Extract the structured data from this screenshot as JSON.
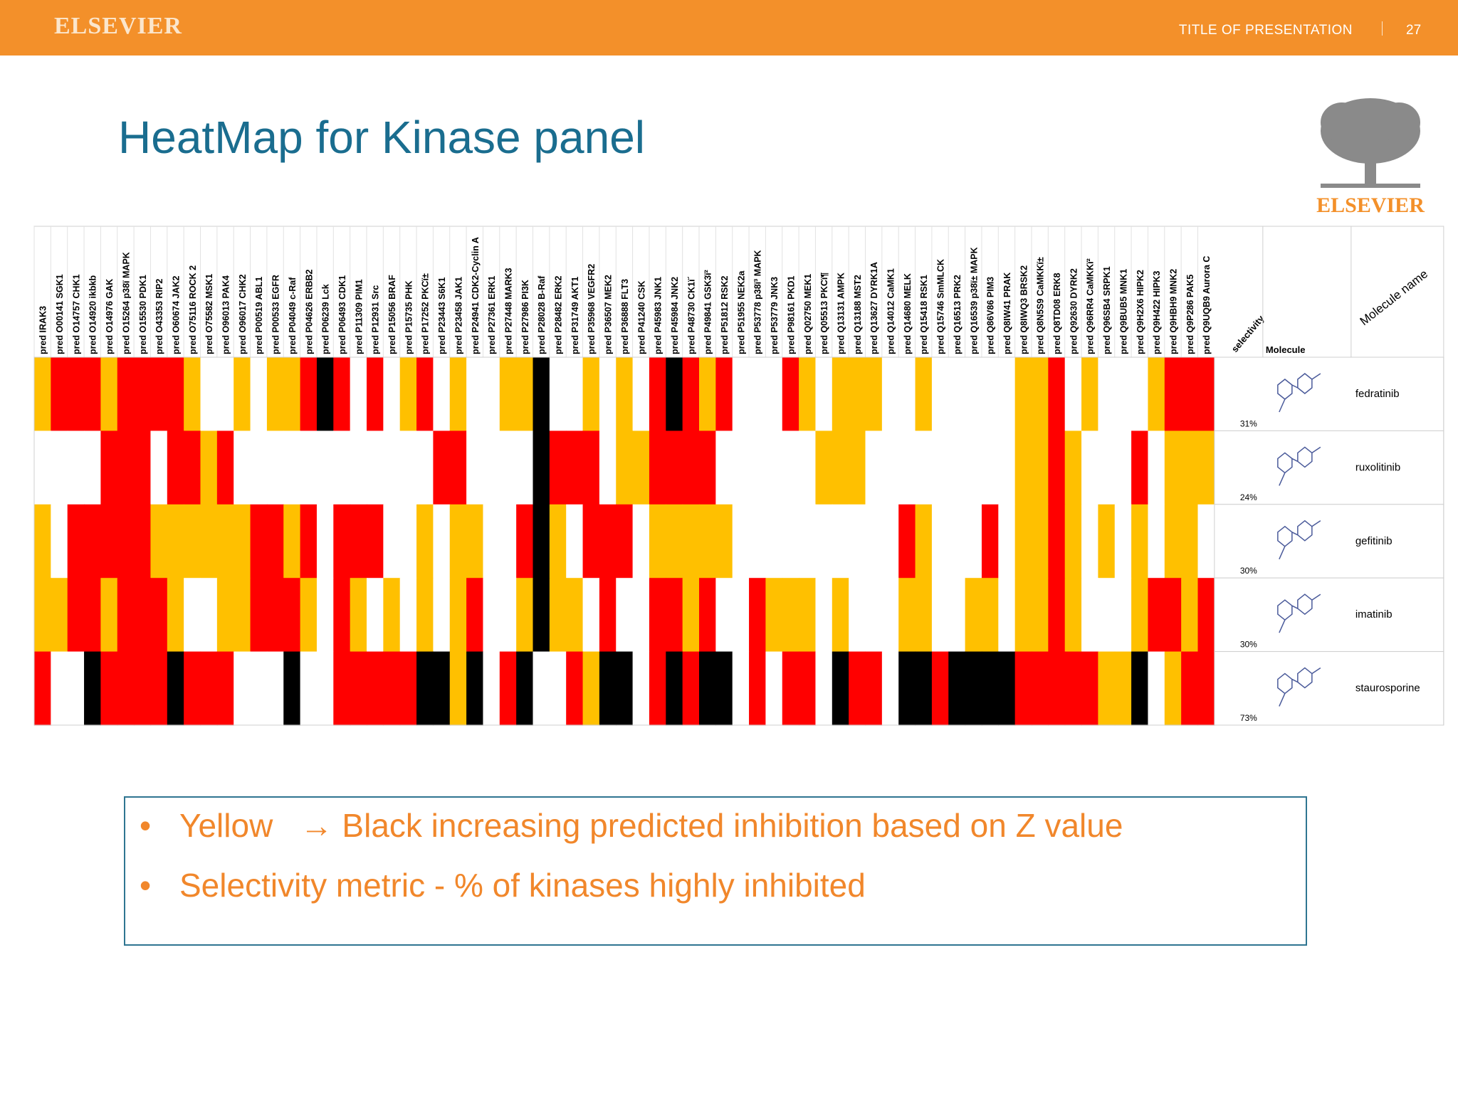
{
  "header": {
    "brand": "ELSEVIER",
    "deck_title": "TITLE OF PRESENTATION",
    "slide_number": "27"
  },
  "slide": {
    "title": "HeatMap for Kinase panel"
  },
  "logo": {
    "text": "ELSEVIER",
    "icon": "elsevier-tree-icon"
  },
  "colors": {
    "bar": "#f3902a",
    "title": "#1a6d8f",
    "bullet_text": "#f1872b",
    "box_border": "#2f7591",
    "level_0": "#ffffff",
    "level_1": "#ffc000",
    "level_2": "#ff0000",
    "level_3": "#000000"
  },
  "chart_data": {
    "type": "heatmap",
    "legend": "0 = white, 1 = yellow, 2 = red, 3 = black (increasing predicted inhibition)",
    "header_labels": {
      "selectivity": "selectivity",
      "molecule": "Molecule",
      "molecule_name": "Molecule name"
    },
    "columns": [
      "pred IRAK3",
      "pred O00141 SGK1",
      "pred O14757 CHK1",
      "pred O14920 ikbkb",
      "pred O14976 GAK",
      "pred O15264 p38ï MAPK",
      "pred O15530 PDK1",
      "pred O43353 RIP2",
      "pred O60674 JAK2",
      "pred O75116 ROCK 2",
      "pred O75582 MSK1",
      "pred O96013 PAK4",
      "pred O96017 CHK2",
      "pred P00519 ABL1",
      "pred P00533 EGFR",
      "pred P04049 c-Raf",
      "pred P04626 ERBB2",
      "pred P06239 Lck",
      "pred P06493 CDK1",
      "pred P11309 PIM1",
      "pred P12931 Src",
      "pred P15056 BRAF",
      "pred P15735 PHK",
      "pred P17252 PKCï±",
      "pred P23443 S6K1",
      "pred P23458 JAK1",
      "pred P24941 CDK2-Cyclin A",
      "pred P27361 ERK1",
      "pred P27448 MARK3",
      "pred P27986 PI3K",
      "pred P28028 B-Raf",
      "pred P28482 ERK2",
      "pred P31749 AKT1",
      "pred P35968 VEGFR2",
      "pred P36507 MEK2",
      "pred P36888 FLT3",
      "pred P41240 CSK",
      "pred P45983 JNK1",
      "pred P45984 JNK2",
      "pred P48730 CK1ï´",
      "pred P49841 GSK3ï²",
      "pred P51812 RSK2",
      "pred P51955 NEK2a",
      "pred P53778 p38ï³ MAPK",
      "pred P53779 JNK3",
      "pred P98161 PKD1",
      "pred Q02750 MEK1",
      "pred Q05513 PKCï¶",
      "pred Q13131 AMPK",
      "pred Q13188 MST2",
      "pred Q13627 DYRK1A",
      "pred Q14012 CaMK1",
      "pred Q14680 MELK",
      "pred Q15418 RSK1",
      "pred Q15746 SmMLCK",
      "pred Q16513 PRK2",
      "pred Q16539 p38ï± MAPK",
      "pred Q86V86 PIM3",
      "pred Q8IW41 PRAK",
      "pred Q8IWQ3 BRSK2",
      "pred Q8N5S9 CaMKKï±",
      "pred Q8TD08 ERK8",
      "pred Q92630 DYRK2",
      "pred Q96RR4 CaMKKï²",
      "pred Q96SB4 SRPK1",
      "pred Q9BUB5 MNK1",
      "pred Q9H2X6 HIPK2",
      "pred Q9H422 HIPK3",
      "pred Q9HBH9 MNK2",
      "pred Q9P286 PAK5",
      "pred Q9UQB9 Aurora C"
    ],
    "rows": [
      {
        "name": "fedratinib",
        "selectivity": "31%",
        "values": [
          1,
          2,
          2,
          2,
          1,
          2,
          2,
          2,
          2,
          1,
          0,
          0,
          1,
          0,
          1,
          1,
          2,
          3,
          2,
          0,
          2,
          0,
          1,
          2,
          0,
          1,
          0,
          0,
          1,
          1,
          3,
          0,
          0,
          1,
          0,
          1,
          0,
          2,
          3,
          2,
          1,
          2,
          0,
          0,
          0,
          2,
          1,
          0,
          1,
          1,
          1,
          0,
          0,
          1,
          0,
          0,
          0,
          0,
          0,
          1,
          1,
          2,
          0,
          1,
          0,
          0,
          0,
          1,
          2,
          2,
          2
        ]
      },
      {
        "name": "ruxolitinib",
        "selectivity": "24%",
        "values": [
          0,
          0,
          0,
          0,
          2,
          2,
          2,
          0,
          2,
          2,
          1,
          2,
          0,
          0,
          0,
          0,
          0,
          0,
          0,
          0,
          0,
          0,
          0,
          0,
          2,
          2,
          0,
          0,
          0,
          0,
          3,
          2,
          2,
          2,
          0,
          1,
          1,
          2,
          2,
          2,
          2,
          0,
          0,
          0,
          0,
          0,
          0,
          1,
          1,
          1,
          0,
          0,
          0,
          0,
          0,
          0,
          0,
          0,
          0,
          1,
          1,
          2,
          1,
          0,
          0,
          0,
          2,
          0,
          1,
          1,
          1
        ]
      },
      {
        "name": "gefitinib",
        "selectivity": "30%",
        "values": [
          1,
          0,
          2,
          2,
          2,
          2,
          2,
          1,
          1,
          1,
          1,
          1,
          1,
          2,
          2,
          1,
          2,
          0,
          2,
          2,
          2,
          0,
          0,
          1,
          0,
          1,
          1,
          0,
          0,
          2,
          3,
          1,
          0,
          2,
          2,
          2,
          0,
          1,
          1,
          1,
          1,
          1,
          0,
          0,
          0,
          0,
          0,
          0,
          0,
          0,
          0,
          0,
          2,
          1,
          0,
          0,
          0,
          2,
          0,
          1,
          1,
          2,
          1,
          0,
          1,
          0,
          1,
          0,
          1,
          1,
          0
        ]
      },
      {
        "name": "imatinib",
        "selectivity": "30%",
        "values": [
          1,
          1,
          2,
          2,
          1,
          2,
          2,
          2,
          1,
          0,
          0,
          1,
          1,
          2,
          2,
          2,
          1,
          0,
          2,
          1,
          0,
          1,
          0,
          1,
          0,
          1,
          2,
          0,
          0,
          1,
          3,
          1,
          1,
          0,
          2,
          0,
          0,
          2,
          2,
          1,
          2,
          0,
          0,
          2,
          1,
          1,
          1,
          0,
          1,
          0,
          0,
          0,
          1,
          1,
          0,
          0,
          1,
          1,
          0,
          1,
          1,
          2,
          1,
          0,
          0,
          0,
          1,
          2,
          2,
          1,
          2
        ]
      },
      {
        "name": "staurosporine",
        "selectivity": "73%",
        "values": [
          2,
          0,
          0,
          3,
          2,
          2,
          2,
          2,
          3,
          2,
          2,
          2,
          0,
          0,
          0,
          3,
          0,
          0,
          2,
          2,
          2,
          2,
          2,
          3,
          3,
          1,
          3,
          0,
          2,
          3,
          0,
          0,
          2,
          1,
          3,
          3,
          0,
          2,
          3,
          2,
          3,
          3,
          0,
          2,
          0,
          2,
          2,
          0,
          3,
          2,
          2,
          0,
          3,
          3,
          2,
          3,
          3,
          3,
          3,
          2,
          2,
          2,
          2,
          2,
          1,
          1,
          3,
          0,
          1,
          2,
          2
        ]
      }
    ]
  },
  "notes": {
    "item1_a": "Yellow",
    "item1_arrow": "→",
    "item1_b": "Black increasing predicted inhibition based on Z value",
    "item2": "Selectivity metric - % of kinases highly inhibited"
  }
}
